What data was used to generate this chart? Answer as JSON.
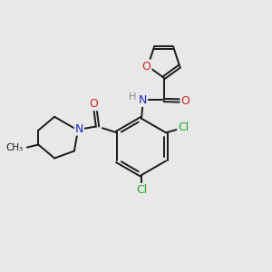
{
  "bg_color": "#e8e8e8",
  "atom_colors": {
    "C": "#1a1a1a",
    "N": "#2222cc",
    "O": "#cc2222",
    "Cl": "#22aa22",
    "H": "#888888"
  },
  "bond_color": "#1a1a1a",
  "bond_width": 1.4,
  "figsize": [
    3.0,
    3.0
  ],
  "dpi": 100
}
